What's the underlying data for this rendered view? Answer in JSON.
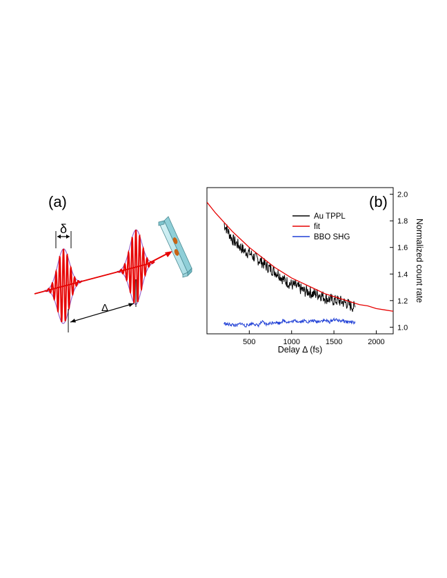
{
  "panel_a": {
    "label": "(a)",
    "pulse_width_symbol": "δ",
    "delay_symbol": "Δ",
    "colors": {
      "pulse": "#e60000",
      "envelope": "#9966cc",
      "sample": "#bfe9ee",
      "particle": "#c86414"
    }
  },
  "panel_b": {
    "label": "(b)",
    "chart_data": {
      "type": "line",
      "xlabel": "Delay Δ (fs)",
      "ylabel": "Normalized count rate",
      "xlim": [
        0,
        2200
      ],
      "ylim": [
        0.95,
        2.05
      ],
      "xticks": [
        500,
        1000,
        1500,
        2000
      ],
      "yticks": [
        1.0,
        1.2,
        1.4,
        1.6,
        1.8,
        2.0
      ],
      "y_axis_side": "right",
      "grid": false,
      "legend_position": "top-right",
      "series": [
        {
          "name": "Au TPPL",
          "color": "#000000",
          "x": [
            200,
            250,
            300,
            350,
            400,
            450,
            500,
            550,
            600,
            650,
            700,
            750,
            800,
            850,
            900,
            950,
            1000,
            1050,
            1100,
            1150,
            1200,
            1250,
            1300,
            1350,
            1400,
            1450,
            1500,
            1550,
            1600,
            1650,
            1700,
            1750
          ],
          "y": [
            1.78,
            1.72,
            1.66,
            1.63,
            1.6,
            1.57,
            1.56,
            1.53,
            1.51,
            1.49,
            1.46,
            1.44,
            1.42,
            1.4,
            1.36,
            1.34,
            1.32,
            1.31,
            1.29,
            1.27,
            1.27,
            1.25,
            1.25,
            1.24,
            1.22,
            1.21,
            1.2,
            1.2,
            1.19,
            1.18,
            1.16,
            1.15
          ]
        },
        {
          "name": "fit",
          "color": "#e60000",
          "x": [
            0,
            100,
            200,
            300,
            400,
            500,
            600,
            700,
            800,
            900,
            1000,
            1100,
            1200,
            1300,
            1400,
            1500,
            1600,
            1700,
            1800,
            1900,
            2000,
            2100,
            2200
          ],
          "y": [
            1.94,
            1.86,
            1.79,
            1.72,
            1.66,
            1.6,
            1.55,
            1.5,
            1.45,
            1.41,
            1.37,
            1.34,
            1.31,
            1.28,
            1.25,
            1.23,
            1.21,
            1.19,
            1.17,
            1.16,
            1.14,
            1.13,
            1.12
          ]
        },
        {
          "name": "BBO SHG",
          "color": "#1f3fd6",
          "x": [
            200,
            250,
            300,
            350,
            400,
            450,
            500,
            550,
            600,
            650,
            700,
            750,
            800,
            850,
            900,
            950,
            1000,
            1050,
            1100,
            1150,
            1200,
            1250,
            1300,
            1350,
            1400,
            1450,
            1500,
            1550,
            1600,
            1650,
            1700,
            1750
          ],
          "y": [
            1.03,
            1.02,
            1.02,
            1.01,
            1.03,
            1.01,
            1.02,
            1.03,
            1.01,
            1.04,
            1.02,
            1.03,
            1.04,
            1.03,
            1.05,
            1.04,
            1.04,
            1.05,
            1.04,
            1.05,
            1.04,
            1.05,
            1.04,
            1.05,
            1.05,
            1.04,
            1.06,
            1.05,
            1.05,
            1.04,
            1.04,
            1.03
          ]
        }
      ]
    }
  }
}
